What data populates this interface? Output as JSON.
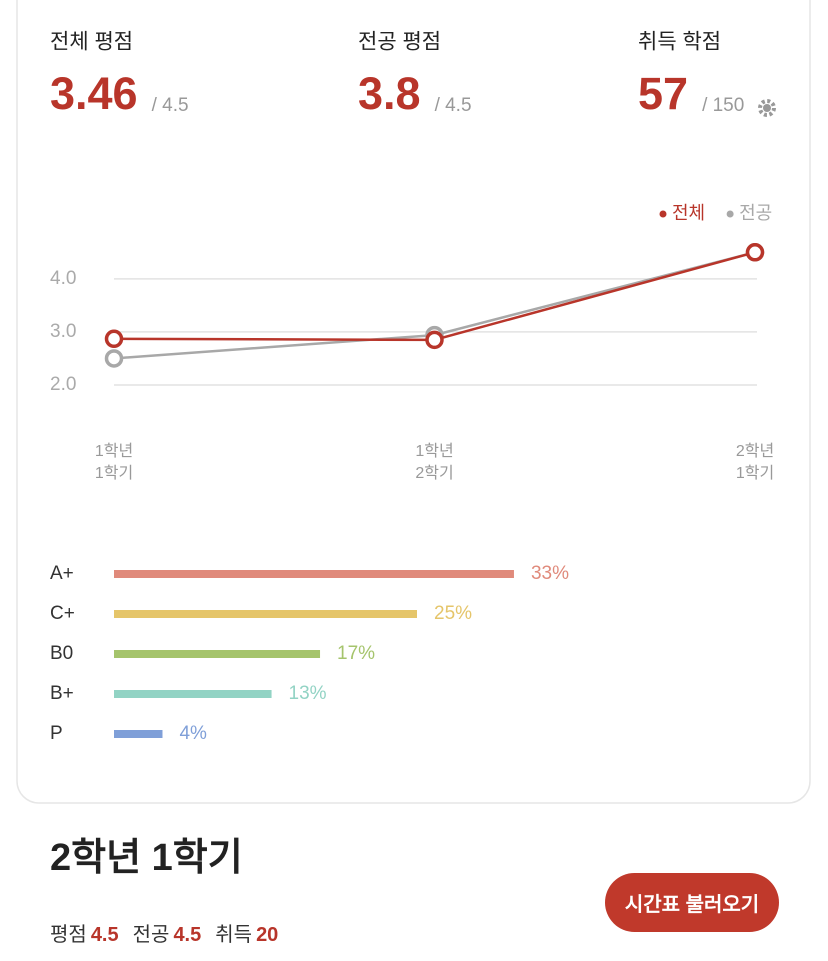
{
  "summary": [
    {
      "label": "전체 평점",
      "value": "3.46",
      "max": "/ 4.5"
    },
    {
      "label": "전공 평점",
      "value": "3.8",
      "max": "/ 4.5"
    },
    {
      "label": "취득 학점",
      "value": "57",
      "max": "/ 150"
    }
  ],
  "chart_data": [
    {
      "type": "line",
      "categories": [
        "1학년\n1학기",
        "1학년\n2학기",
        "2학년\n1학기"
      ],
      "series": [
        {
          "name": "전체",
          "color": "#b8352a",
          "values": [
            2.87,
            2.85,
            4.5
          ]
        },
        {
          "name": "전공",
          "color": "#a8a8a8",
          "values": [
            2.5,
            2.94,
            4.5
          ]
        }
      ],
      "ylim": [
        2,
        4.75
      ],
      "yticks": [
        {
          "value": 2,
          "label": "2.0"
        },
        {
          "value": 3,
          "label": "3.0"
        },
        {
          "value": 4,
          "label": "4.0"
        }
      ],
      "grid": true,
      "legend": "top-right"
    },
    {
      "type": "hbar",
      "categories": [
        "A+",
        "C+",
        "B0",
        "B+",
        "P"
      ],
      "values": [
        33,
        25,
        17,
        13,
        4
      ],
      "value_labels": [
        "33%",
        "25%",
        "17%",
        "13%",
        "4%"
      ],
      "colors": [
        "#e08a7b",
        "#e5c56a",
        "#a5c46c",
        "#92d3c4",
        "#7f9fd8"
      ],
      "xlim": [
        0,
        50
      ]
    }
  ],
  "semester": {
    "title": "2학년 1학기",
    "stats": [
      {
        "label": "평점",
        "value": "4.5"
      },
      {
        "label": "전공",
        "value": "4.5"
      },
      {
        "label": "취득",
        "value": "20"
      }
    ],
    "button": "시간표 불러오기"
  }
}
